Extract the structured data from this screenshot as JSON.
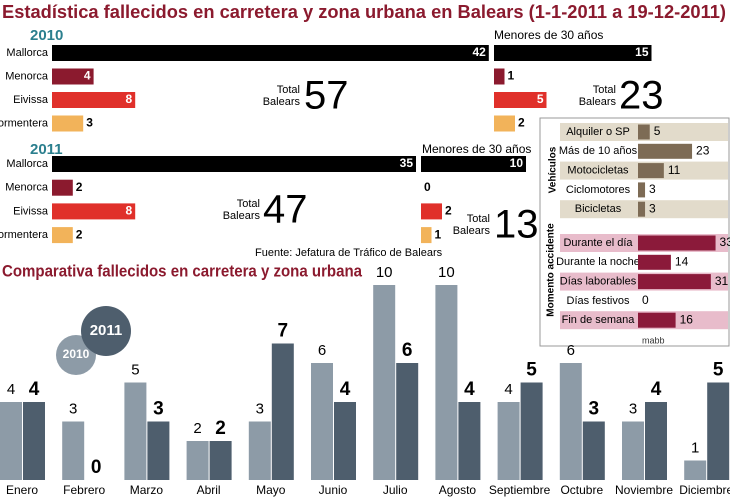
{
  "title": "Estadística fallecidos en carretera y zona urbana en Balears (1-1-2011 a 19-12-2011)",
  "source": "Fuente: Jefatura de Tráfico de Balears",
  "credit": "mabb",
  "chart_data": [
    {
      "type": "hbar",
      "title": "2010",
      "title_color": "#2b7f8e",
      "categories": [
        "Mallorca",
        "Menorca",
        "Eivissa",
        "Formentera"
      ],
      "values": [
        42,
        4,
        8,
        3
      ],
      "colors": [
        "#000000",
        "#8b1a2e",
        "#e0302a",
        "#f2b35a"
      ],
      "total_label": [
        "Total",
        "Balears"
      ],
      "total": 57
    },
    {
      "type": "hbar",
      "title": "Menores de 30 años",
      "title_color": "#000000",
      "values": [
        15,
        1,
        5,
        2
      ],
      "colors": [
        "#000000",
        "#8b1a2e",
        "#e0302a",
        "#f2b35a"
      ],
      "total_label": [
        "Total",
        "Balears"
      ],
      "total": 23
    },
    {
      "type": "hbar",
      "title": "2011",
      "title_color": "#2b7f8e",
      "categories": [
        "Mallorca",
        "Menorca",
        "Eivissa",
        "Formentera"
      ],
      "values": [
        35,
        2,
        8,
        2
      ],
      "colors": [
        "#000000",
        "#8b1a2e",
        "#e0302a",
        "#f2b35a"
      ],
      "total_label": [
        "Total",
        "Balears"
      ],
      "total": 47
    },
    {
      "type": "hbar",
      "title": "Menores de 30 años",
      "title_color": "#000000",
      "values": [
        10,
        0,
        2,
        1
      ],
      "colors": [
        "#000000",
        "#8b1a2e",
        "#e0302a",
        "#f2b35a"
      ],
      "total_label": [
        "Total",
        "Balears"
      ],
      "total": 13
    },
    {
      "type": "panel",
      "group_label": "Vehículos",
      "categories": [
        "Alquiler o SP",
        "Más de 10 años",
        "Motocicletas",
        "Ciclomotores",
        "Bicicletas"
      ],
      "values": [
        5,
        23,
        11,
        3,
        3
      ],
      "color": "#7d6b55",
      "band_colors": [
        "#e2dbcb",
        null,
        "#e2dbcb",
        null,
        "#e2dbcb"
      ]
    },
    {
      "type": "panel",
      "group_label": "Momento accidente",
      "categories": [
        "Durante el día",
        "Durante la noche",
        "Días laborables",
        "Días festivos",
        "Fin de semana"
      ],
      "values": [
        33,
        14,
        31,
        0,
        16
      ],
      "color": "#8b1a3a",
      "band_colors": [
        "#e8bccb",
        null,
        "#e8bccb",
        null,
        "#e8bccb"
      ]
    },
    {
      "type": "grouped_bar",
      "title": "Comparativa fallecidos en carretera y zona urbana",
      "title_color": "#8b1a2e",
      "categories": [
        "Enero",
        "Febrero",
        "Marzo",
        "Abril",
        "Mayo",
        "Junio",
        "Julio",
        "Agosto",
        "Septiembre",
        "Octubre",
        "Noviembre",
        "Diciembre"
      ],
      "series": [
        {
          "name": "2010",
          "color": "#8d9ba7",
          "values": [
            4,
            3,
            5,
            2,
            3,
            6,
            10,
            10,
            4,
            6,
            3,
            1
          ]
        },
        {
          "name": "2011",
          "color": "#4e5e6d",
          "values": [
            4,
            0,
            3,
            2,
            7,
            4,
            6,
            4,
            5,
            3,
            4,
            5
          ]
        }
      ]
    }
  ]
}
